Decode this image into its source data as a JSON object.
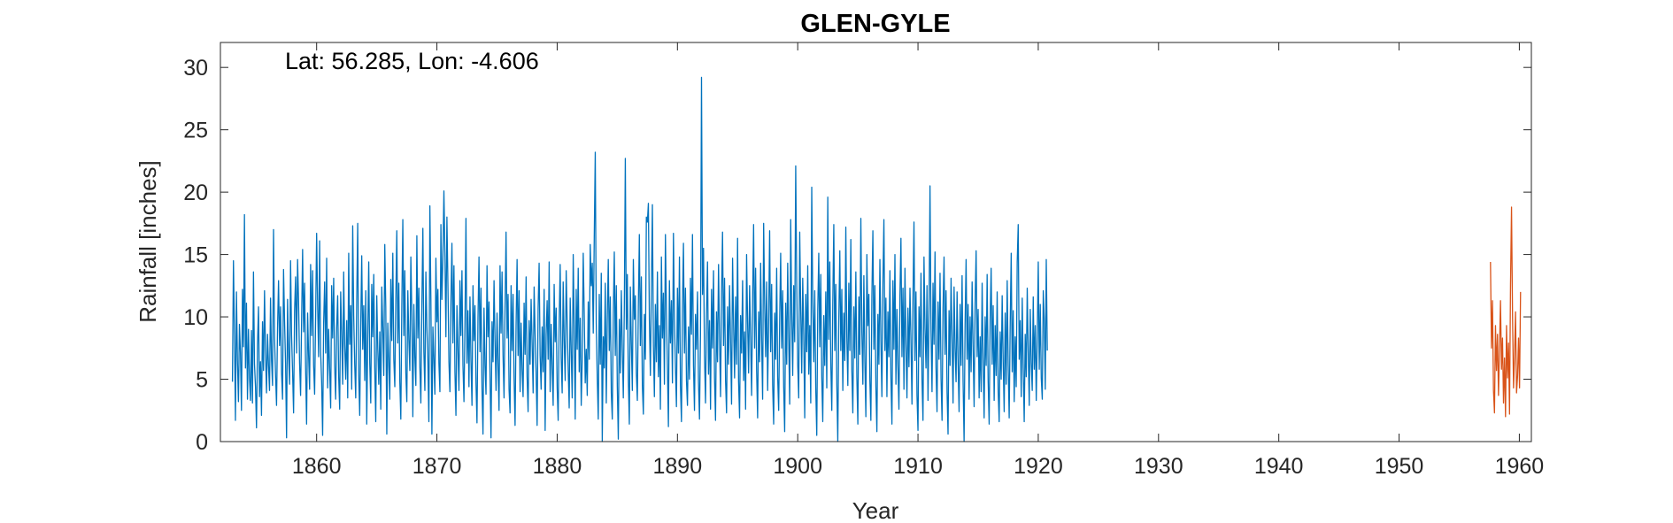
{
  "chart_data": {
    "type": "line",
    "title": "GLEN-GYLE",
    "annotation": "Lat: 56.285, Lon: -4.606",
    "xlabel": "Year",
    "ylabel": "Rainfall [inches]",
    "xlim": [
      1852.0,
      1961.0
    ],
    "ylim": [
      0,
      32
    ],
    "xticks": [
      1860,
      1870,
      1880,
      1890,
      1900,
      1910,
      1920,
      1930,
      1940,
      1950,
      1960
    ],
    "yticks": [
      0,
      5,
      10,
      15,
      20,
      25,
      30
    ],
    "grid": false,
    "series": [
      {
        "color": "#0072BD",
        "x_start": 1853.0,
        "x_step": 0.0833333,
        "values": [
          4.8,
          14.5,
          8.7,
          1.7,
          12.0,
          6.5,
          3.2,
          9.4,
          7.1,
          2.5,
          12.2,
          7.6,
          18.2,
          5.9,
          11.1,
          3.4,
          9.0,
          5.1,
          3.3,
          8.9,
          3.1,
          13.6,
          6.2,
          4.4,
          1.1,
          7.8,
          10.8,
          3.6,
          6.4,
          2.1,
          9.6,
          5.7,
          12.1,
          7.2,
          3.9,
          8.6,
          6.1,
          4.1,
          11.5,
          6.5,
          4.5,
          17.0,
          8.4,
          5.4,
          2.9,
          9.1,
          12.9,
          7.7,
          10.8,
          5.5,
          3.4,
          13.8,
          9.7,
          6.3,
          0.3,
          11.4,
          7.0,
          4.6,
          14.5,
          8.5,
          5.6,
          2.3,
          10.5,
          13.2,
          7.1,
          14.6,
          11.1,
          6.3,
          3.7,
          9.6,
          15.4,
          8.8,
          12.7,
          5.9,
          1.4,
          10.3,
          6.9,
          4.2,
          14.2,
          8.5,
          13.7,
          6.1,
          3.8,
          9.9,
          16.7,
          10.9,
          6.8,
          16.1,
          7.2,
          4.8,
          0.5,
          9.5,
          12.8,
          7.1,
          14.7,
          4.3,
          9.0,
          5.8,
          2.7,
          12.5,
          8.3,
          13.1,
          6.1,
          3.4,
          9.1,
          11.7,
          5.2,
          2.6,
          12.0,
          8.6,
          4.6,
          13.6,
          7.7,
          5.0,
          9.7,
          3.5,
          15.1,
          7.8,
          10.9,
          4.2,
          17.3,
          10.1,
          6.2,
          3.5,
          11.3,
          17.5,
          5.3,
          2.1,
          9.3,
          14.9,
          7.4,
          10.9,
          4.9,
          12.1,
          1.4,
          8.5,
          14.4,
          6.3,
          3.1,
          12.6,
          8.4,
          13.4,
          5.9,
          1.6,
          11.7,
          7.5,
          4.6,
          8.8,
          2.6,
          12.4,
          9.1,
          5.3,
          15.8,
          10.8,
          0.6,
          9.5,
          6.4,
          3.4,
          13.0,
          8.1,
          15.1,
          6.6,
          4.4,
          11.3,
          16.9,
          7.9,
          12.7,
          4.8,
          1.8,
          10.9,
          17.8,
          8.5,
          13.7,
          5.5,
          3.2,
          12.1,
          8.2,
          5.7,
          14.8,
          10.3,
          2.0,
          11.0,
          6.8,
          4.5,
          16.5,
          8.3,
          12.3,
          6.0,
          3.1,
          10.8,
          17.1,
          7.2,
          4.1,
          13.6,
          9.2,
          6.5,
          1.6,
          18.9,
          11.3,
          0.6,
          9.2,
          6.6,
          3.8,
          14.7,
          9.6,
          12.2,
          6.3,
          4.0,
          17.4,
          11.4,
          14.7,
          20.1,
          15.1,
          8.4,
          18.0,
          12.6,
          6.4,
          4.0,
          11.2,
          15.9,
          7.9,
          14.1,
          5.6,
          2.1,
          10.9,
          7.4,
          4.1,
          12.9,
          8.5,
          13.7,
          6.1,
          3.2,
          9.4,
          17.9,
          6.3,
          10.5,
          4.4,
          11.6,
          6.5,
          2.9,
          12.5,
          8.1,
          10.9,
          4.7,
          1.5,
          9.9,
          14.8,
          7.2,
          12.3,
          4.3,
          0.6,
          10.7,
          6.1,
          3.8,
          14.1,
          8.4,
          11.2,
          5.3,
          0.3,
          9.6,
          6.4,
          12.9,
          8.1,
          4.1,
          10.3,
          6.1,
          2.5,
          14.1,
          8.7,
          13.6,
          6.9,
          3.5,
          10.8,
          16.8,
          8.3,
          11.8,
          4.2,
          2.3,
          12.5,
          7.3,
          11.8,
          5.1,
          1.3,
          9.3,
          14.6,
          6.9,
          12.1,
          4.0,
          9.5,
          5.7,
          3.6,
          11.1,
          7.0,
          13.2,
          5.2,
          2.4,
          9.7,
          6.2,
          11.4,
          7.9,
          3.9,
          12.4,
          8.6,
          5.5,
          1.3,
          10.7,
          14.3,
          6.9,
          4.2,
          9.2,
          5.6,
          12.2,
          0.9,
          8.6,
          11.3,
          6.6,
          14.4,
          4.0,
          9.4,
          5.9,
          2.9,
          12.6,
          8.0,
          10.7,
          4.3,
          1.7,
          9.6,
          14.2,
          6.7,
          3.9,
          12.8,
          8.1,
          4.9,
          13.7,
          9.5,
          5.8,
          2.7,
          11.5,
          7.3,
          3.5,
          15.0,
          9.2,
          1.8,
          12.2,
          7.4,
          13.9,
          5.6,
          9.9,
          2.9,
          6.7,
          15.1,
          10.2,
          4.7,
          7.4,
          3.7,
          11.2,
          6.6,
          15.8,
          12.5,
          14.3,
          8.7,
          16.4,
          23.2,
          9.5,
          5.1,
          1.8,
          11.8,
          6.2,
          13.5,
          0.0,
          8.4,
          5.9,
          12.7,
          3.1,
          9.8,
          14.6,
          7.3,
          11.6,
          3.9,
          1.8,
          10.2,
          15.2,
          6.9,
          12.5,
          4.4,
          0.2,
          9.8,
          5.5,
          12.1,
          7.4,
          3.5,
          10.7,
          22.7,
          9.0,
          13.4,
          5.0,
          1.4,
          12.4,
          7.9,
          4.1,
          14.6,
          9.8,
          11.7,
          5.5,
          3.3,
          10.8,
          16.6,
          7.7,
          13.2,
          4.5,
          2.2,
          10.2,
          6.6,
          18.0,
          17.6,
          19.1,
          9.7,
          5.3,
          12.3,
          19.0,
          7.8,
          3.6,
          11.0,
          6.4,
          13.6,
          5.2,
          9.3,
          2.6,
          14.8,
          8.3,
          11.9,
          4.6,
          16.6,
          10.4,
          5.9,
          1.2,
          12.9,
          7.9,
          11.3,
          4.7,
          16.7,
          9.8,
          6.0,
          2.8,
          12.3,
          7.1,
          14.8,
          4.5,
          1.6,
          10.7,
          15.9,
          7.1,
          12.3,
          4.9,
          2.9,
          9.2,
          5.0,
          13.1,
          8.6,
          16.6,
          6.1,
          2.5,
          10.2,
          7.4,
          12.0,
          4.8,
          1.8,
          8.6,
          29.2,
          11.8,
          15.5,
          6.9,
          3.1,
          10.3,
          14.4,
          5.4,
          9.7,
          2.6,
          12.2,
          7.5,
          13.7,
          5.1,
          1.7,
          10.4,
          6.4,
          14.2,
          8.2,
          3.6,
          11.9,
          16.8,
          7.7,
          13.1,
          4.9,
          2.3,
          10.8,
          6.2,
          12.5,
          8.1,
          3.0,
          14.7,
          9.4,
          5.1,
          11.6,
          6.2,
          16.3,
          4.8,
          1.9,
          10.1,
          7.1,
          12.9,
          4.9,
          8.8,
          2.6,
          15.0,
          9.6,
          5.5,
          12.5,
          8.2,
          3.7,
          11.3,
          17.4,
          7.5,
          13.9,
          5.7,
          1.9,
          10.4,
          6.4,
          14.3,
          8.1,
          3.4,
          17.5,
          11.1,
          6.8,
          12.8,
          4.1,
          9.7,
          16.9,
          7.2,
          12.6,
          4.5,
          1.4,
          10.3,
          6.6,
          13.9,
          5.2,
          2.5,
          9.7,
          15.1,
          7.5,
          12.1,
          4.4,
          0.8,
          11.1,
          6.2,
          14.3,
          8.3,
          3.0,
          17.8,
          10.3,
          5.3,
          12.5,
          8.0,
          22.1,
          12.7,
          6.2,
          3.5,
          16.8,
          10.6,
          5.5,
          13.1,
          8.5,
          1.9,
          11.8,
          7.2,
          14.1,
          5.4,
          9.3,
          3.1,
          20.4,
          11.2,
          6.4,
          12.1,
          4.3,
          0.5,
          10.5,
          15.1,
          7.6,
          13.4,
          5.2,
          1.6,
          10.1,
          6.1,
          12.0,
          4.3,
          19.6,
          8.2,
          14.4,
          6.3,
          2.5,
          11.1,
          17.4,
          7.3,
          12.6,
          4.6,
          0.0,
          9.8,
          15.3,
          7.3,
          12.2,
          4.1,
          10.3,
          6.5,
          17.2,
          8.4,
          4.5,
          12.7,
          7.3,
          16.2,
          5.7,
          2.3,
          10.8,
          6.7,
          13.6,
          5.2,
          1.4,
          11.6,
          7.0,
          17.9,
          8.8,
          4.6,
          13.3,
          6.4,
          2.0,
          15.0,
          9.3,
          11.8,
          4.9,
          1.7,
          11.6,
          16.9,
          7.4,
          12.5,
          4.4,
          0.8,
          10.2,
          6.2,
          14.6,
          8.1,
          3.6,
          12.7,
          17.8,
          7.3,
          11.5,
          3.6,
          10.4,
          6.8,
          13.7,
          5.2,
          1.4,
          12.9,
          7.4,
          15.0,
          4.6,
          10.6,
          6.0,
          2.6,
          11.7,
          16.3,
          6.8,
          12.3,
          4.2,
          13.9,
          7.8,
          3.5,
          10.7,
          6.0,
          12.3,
          8.1,
          3.0,
          11.4,
          17.6,
          6.5,
          12.0,
          3.7,
          0.9,
          10.8,
          6.8,
          13.5,
          5.0,
          1.7,
          14.8,
          9.1,
          5.9,
          12.5,
          3.3,
          10.3,
          20.5,
          8.9,
          4.0,
          12.7,
          7.8,
          15.2,
          5.9,
          2.4,
          11.2,
          6.6,
          13.5,
          5.1,
          1.7,
          10.7,
          14.8,
          7.0,
          12.1,
          4.0,
          0.6,
          10.5,
          6.1,
          13.1,
          8.2,
          3.1,
          12.4,
          7.5,
          4.8,
          12.0,
          6.3,
          2.4,
          11.0,
          6.1,
          13.3,
          4.8,
          0.0,
          9.4,
          14.6,
          6.6,
          11.0,
          3.4,
          10.0,
          5.6,
          12.8,
          7.5,
          2.8,
          11.1,
          15.3,
          6.8,
          10.6,
          3.5,
          8.4,
          4.0,
          12.7,
          6.4,
          1.9,
          10.0,
          6.1,
          13.4,
          4.9,
          1.4,
          9.8,
          13.9,
          6.2,
          10.9,
          3.3,
          9.3,
          5.3,
          12.0,
          4.1,
          1.6,
          8.8,
          5.0,
          11.7,
          6.4,
          2.4,
          10.3,
          4.6,
          12.9,
          6.1,
          1.9,
          9.3,
          15.1,
          5.6,
          10.5,
          3.2,
          8.4,
          4.4,
          14.4,
          17.4,
          6.6,
          9.7,
          3.6,
          11.5,
          5.9,
          1.6,
          8.6,
          5.2,
          12.3,
          7.2,
          2.9,
          10.6,
          6.3,
          4.1,
          11.6,
          5.8,
          9.3,
          3.3,
          8.4,
          14.4,
          5.8,
          11.0,
          5.1,
          3.4,
          12.1,
          9.7,
          4.2,
          14.6,
          7.3
        ]
      },
      {
        "color": "#D95319",
        "x_start": 1957.6,
        "x_step": 0.0833333,
        "values": [
          14.4,
          7.5,
          11.3,
          4.1,
          2.3,
          9.3,
          5.7,
          8.6,
          3.7,
          7.4,
          11.3,
          5.8,
          8.3,
          3.1,
          6.7,
          2.0,
          9.3,
          5.1,
          7.9,
          2.2,
          12.7,
          18.8,
          10.1,
          4.3,
          6.8,
          10.4,
          3.9,
          5.2,
          8.3,
          4.3,
          12.0
        ]
      }
    ]
  }
}
